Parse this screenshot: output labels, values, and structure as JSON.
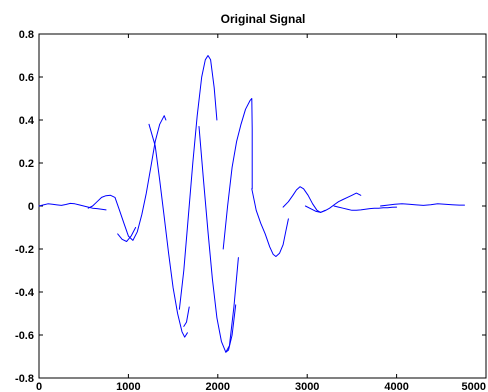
{
  "chart_data": {
    "type": "line",
    "title": "Original Signal",
    "xlabel": "",
    "ylabel": "",
    "xlim": [
      0,
      5000
    ],
    "ylim": [
      -0.8,
      0.8
    ],
    "x_ticks": [
      0,
      1000,
      2000,
      3000,
      4000,
      5000
    ],
    "x_tick_labels": [
      "0",
      "1000",
      "2000",
      "3000",
      "4000",
      "5000"
    ],
    "y_ticks": [
      0.8,
      0.6,
      0.4,
      0.2,
      0,
      -0.2,
      -0.4,
      -0.6,
      -0.8
    ],
    "y_tick_labels": [
      "0.8",
      "0.6",
      "0.4",
      "0.2",
      "0",
      "-0.2",
      "-0.4",
      "-0.6",
      "-0.8"
    ],
    "grid": false,
    "line_color": "#0000ff",
    "series": [
      {
        "segments": [
          [
            [
              0,
              0.0
            ],
            [
              50,
              0.005
            ],
            [
              100,
              0.01
            ],
            [
              150,
              0.008
            ],
            [
              200,
              0.005
            ],
            [
              250,
              0.003
            ],
            [
              300,
              0.007
            ],
            [
              350,
              0.012
            ],
            [
              400,
              0.01
            ],
            [
              450,
              0.005
            ],
            [
              500,
              0.0
            ],
            [
              550,
              -0.005
            ],
            [
              600,
              -0.01
            ],
            [
              650,
              -0.012
            ],
            [
              700,
              -0.015
            ],
            [
              750,
              -0.018
            ]
          ],
          [
            [
              550,
              -0.01
            ],
            [
              600,
              0.0
            ],
            [
              650,
              0.02
            ],
            [
              700,
              0.04
            ],
            [
              750,
              0.048
            ],
            [
              800,
              0.05
            ],
            [
              850,
              0.04
            ],
            [
              900,
              -0.02
            ],
            [
              950,
              -0.08
            ],
            [
              1000,
              -0.14
            ],
            [
              1050,
              -0.16
            ],
            [
              1100,
              -0.12
            ],
            [
              1150,
              -0.04
            ],
            [
              1200,
              0.06
            ],
            [
              1250,
              0.18
            ],
            [
              1300,
              0.3
            ],
            [
              1350,
              0.38
            ],
            [
              1400,
              0.42
            ],
            [
              1420,
              0.4
            ]
          ],
          [
            [
              880,
              -0.13
            ],
            [
              930,
              -0.155
            ],
            [
              980,
              -0.165
            ],
            [
              1030,
              -0.14
            ],
            [
              1080,
              -0.1
            ]
          ],
          [
            [
              1230,
              0.38
            ],
            [
              1300,
              0.28
            ],
            [
              1350,
              0.12
            ],
            [
              1400,
              -0.05
            ],
            [
              1450,
              -0.22
            ],
            [
              1500,
              -0.38
            ],
            [
              1550,
              -0.5
            ],
            [
              1600,
              -0.585
            ],
            [
              1630,
              -0.61
            ],
            [
              1660,
              -0.59
            ]
          ],
          [
            [
              1570,
              -0.48
            ],
            [
              1620,
              -0.3
            ],
            [
              1670,
              -0.05
            ],
            [
              1720,
              0.2
            ],
            [
              1770,
              0.42
            ],
            [
              1820,
              0.6
            ],
            [
              1860,
              0.68
            ],
            [
              1890,
              0.7
            ],
            [
              1920,
              0.68
            ],
            [
              1960,
              0.55
            ],
            [
              1990,
              0.4
            ]
          ],
          [
            [
              1620,
              -0.56
            ],
            [
              1650,
              -0.54
            ],
            [
              1680,
              -0.47
            ]
          ],
          [
            [
              1790,
              0.37
            ],
            [
              1840,
              0.12
            ],
            [
              1890,
              -0.12
            ],
            [
              1940,
              -0.34
            ],
            [
              1990,
              -0.52
            ],
            [
              2040,
              -0.63
            ],
            [
              2090,
              -0.68
            ],
            [
              2120,
              -0.67
            ],
            [
              2160,
              -0.6
            ],
            [
              2200,
              -0.46
            ]
          ],
          [
            [
              2090,
              -0.68
            ],
            [
              2130,
              -0.65
            ],
            [
              2180,
              -0.47
            ],
            [
              2230,
              -0.24
            ]
          ],
          [
            [
              2060,
              -0.2
            ],
            [
              2110,
              0.0
            ],
            [
              2160,
              0.18
            ],
            [
              2210,
              0.3
            ],
            [
              2260,
              0.38
            ],
            [
              2310,
              0.45
            ],
            [
              2360,
              0.49
            ],
            [
              2380,
              0.5
            ],
            [
              2385,
              0.36
            ],
            [
              2385,
              0.24
            ],
            [
              2385,
              0.08
            ]
          ],
          [
            [
              2380,
              0.08
            ],
            [
              2430,
              -0.02
            ],
            [
              2480,
              -0.08
            ],
            [
              2530,
              -0.13
            ],
            [
              2580,
              -0.19
            ],
            [
              2620,
              -0.225
            ],
            [
              2650,
              -0.235
            ],
            [
              2690,
              -0.22
            ],
            [
              2730,
              -0.18
            ],
            [
              2760,
              -0.12
            ],
            [
              2790,
              -0.06
            ]
          ],
          [
            [
              2730,
              -0.005
            ],
            [
              2790,
              0.02
            ],
            [
              2840,
              0.05
            ],
            [
              2880,
              0.075
            ],
            [
              2920,
              0.09
            ],
            [
              2960,
              0.08
            ],
            [
              3010,
              0.05
            ],
            [
              3060,
              0.01
            ],
            [
              3110,
              -0.02
            ],
            [
              3150,
              -0.03
            ],
            [
              3200,
              -0.02
            ]
          ],
          [
            [
              2980,
              0.0
            ],
            [
              3050,
              -0.015
            ],
            [
              3100,
              -0.025
            ],
            [
              3150,
              -0.03
            ],
            [
              3200,
              -0.022
            ],
            [
              3250,
              -0.01
            ],
            [
              3300,
              0.005
            ],
            [
              3350,
              0.02
            ],
            [
              3400,
              0.03
            ],
            [
              3450,
              0.04
            ],
            [
              3500,
              0.05
            ],
            [
              3550,
              0.06
            ],
            [
              3600,
              0.05
            ]
          ],
          [
            [
              3300,
              0.0
            ],
            [
              3350,
              -0.005
            ],
            [
              3400,
              -0.01
            ],
            [
              3450,
              -0.015
            ],
            [
              3500,
              -0.02
            ],
            [
              3550,
              -0.02
            ],
            [
              3600,
              -0.018
            ],
            [
              3650,
              -0.015
            ],
            [
              3700,
              -0.012
            ],
            [
              3750,
              -0.01
            ],
            [
              3800,
              -0.01
            ],
            [
              3850,
              -0.008
            ],
            [
              3900,
              -0.008
            ],
            [
              3950,
              -0.006
            ],
            [
              4000,
              -0.005
            ]
          ],
          [
            [
              3820,
              0.0
            ],
            [
              3900,
              0.004
            ],
            [
              3980,
              0.008
            ],
            [
              4060,
              0.01
            ],
            [
              4140,
              0.008
            ],
            [
              4220,
              0.005
            ],
            [
              4300,
              0.003
            ],
            [
              4380,
              0.006
            ],
            [
              4460,
              0.01
            ],
            [
              4540,
              0.008
            ],
            [
              4620,
              0.006
            ],
            [
              4700,
              0.004
            ],
            [
              4760,
              0.004
            ]
          ]
        ]
      }
    ]
  }
}
